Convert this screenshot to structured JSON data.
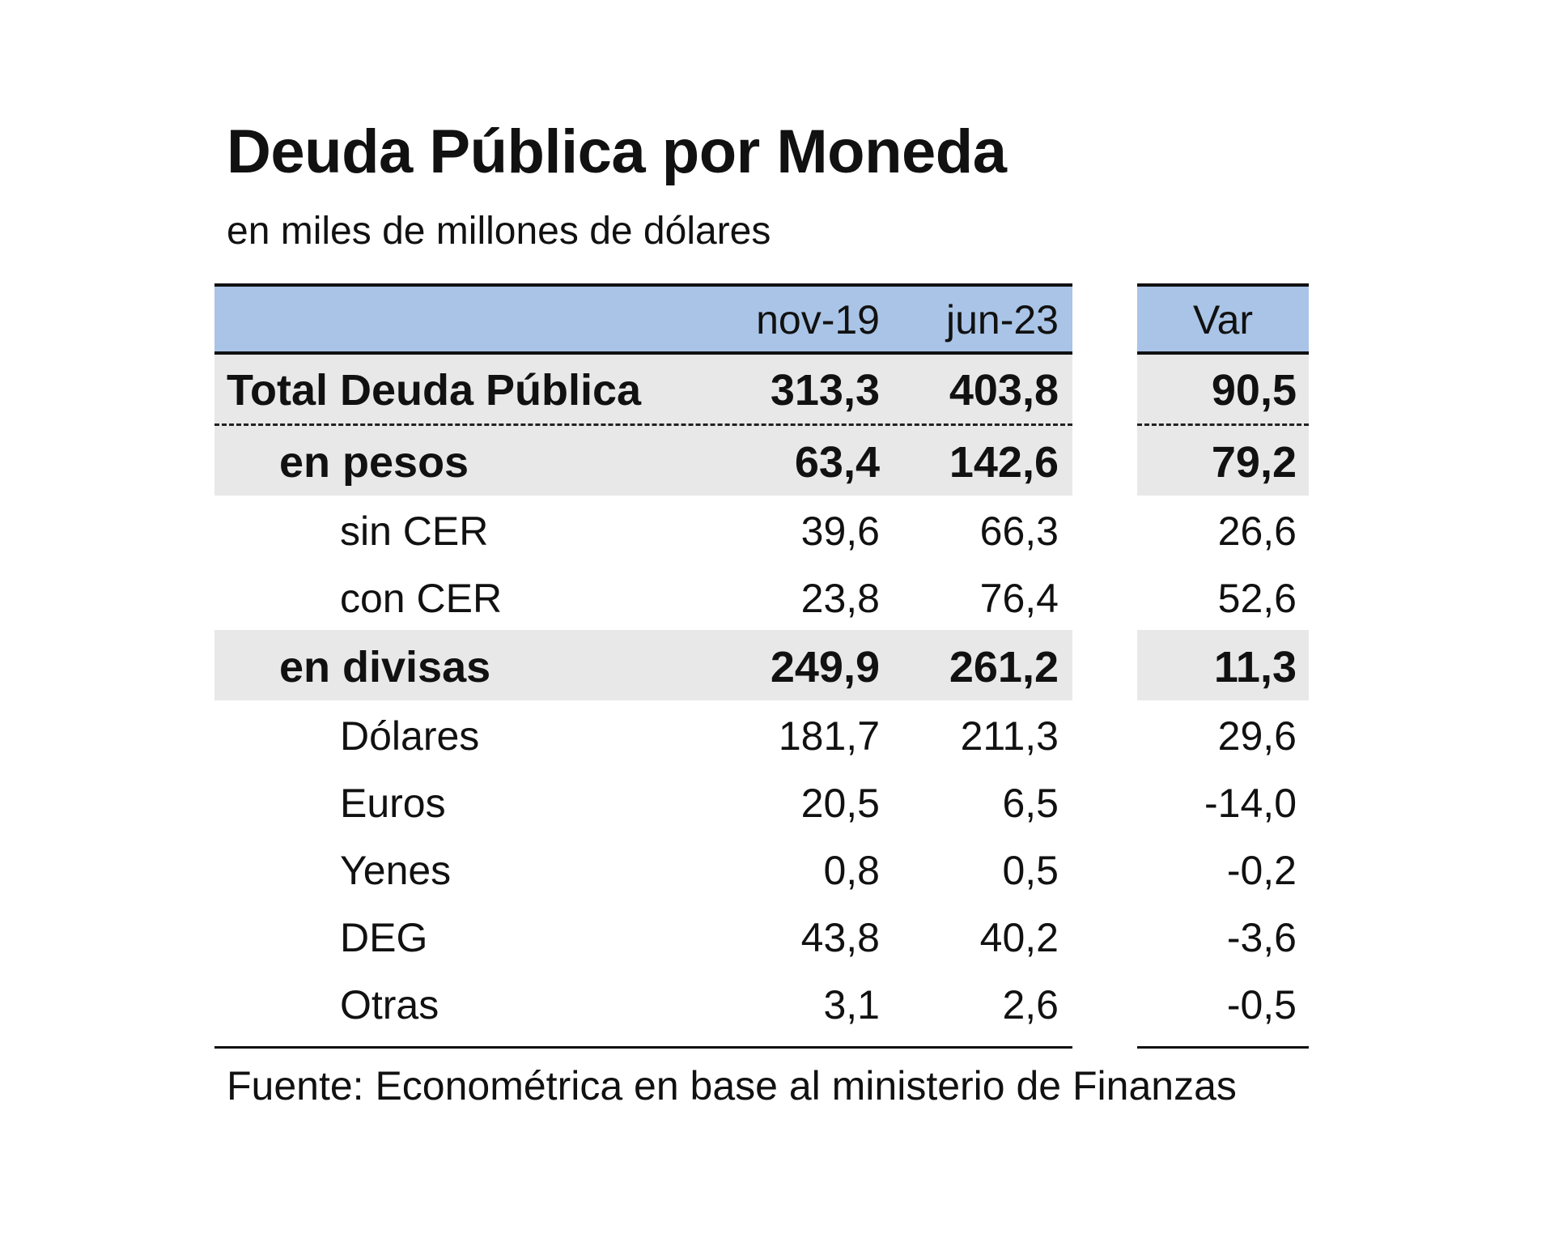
{
  "title": "Deuda Pública por Moneda",
  "subtitle": "en miles de millones de dólares",
  "columns": {
    "c1": "nov-19",
    "c2": "jun-23",
    "var": "Var"
  },
  "rows": [
    {
      "label": "Total Deuda Pública",
      "c1": "313,3",
      "c2": "403,8",
      "var": "90,5",
      "level": "total",
      "bold": true
    },
    {
      "label": "en pesos",
      "c1": "63,4",
      "c2": "142,6",
      "var": "79,2",
      "level": "group",
      "bold": true
    },
    {
      "label": "sin CER",
      "c1": "39,6",
      "c2": "66,3",
      "var": "26,6",
      "level": "item",
      "bold": false
    },
    {
      "label": "con CER",
      "c1": "23,8",
      "c2": "76,4",
      "var": "52,6",
      "level": "item",
      "bold": false
    },
    {
      "label": "en divisas",
      "c1": "249,9",
      "c2": "261,2",
      "var": "11,3",
      "level": "group",
      "bold": true
    },
    {
      "label": "Dólares",
      "c1": "181,7",
      "c2": "211,3",
      "var": "29,6",
      "level": "item",
      "bold": false
    },
    {
      "label": "Euros",
      "c1": "20,5",
      "c2": "6,5",
      "var": "-14,0",
      "level": "item",
      "bold": false
    },
    {
      "label": "Yenes",
      "c1": "0,8",
      "c2": "0,5",
      "var": "-0,2",
      "level": "item",
      "bold": false
    },
    {
      "label": "DEG",
      "c1": "43,8",
      "c2": "40,2",
      "var": "-3,6",
      "level": "item",
      "bold": false
    },
    {
      "label": "Otras",
      "c1": "3,1",
      "c2": "2,6",
      "var": "-0,5",
      "level": "item",
      "bold": false
    }
  ],
  "source": "Fuente: Econométrica en base al ministerio de Finanzas",
  "colors": {
    "header_bg": "#a9c4e6",
    "band_bg": "#e8e8e8",
    "text": "#111111"
  }
}
